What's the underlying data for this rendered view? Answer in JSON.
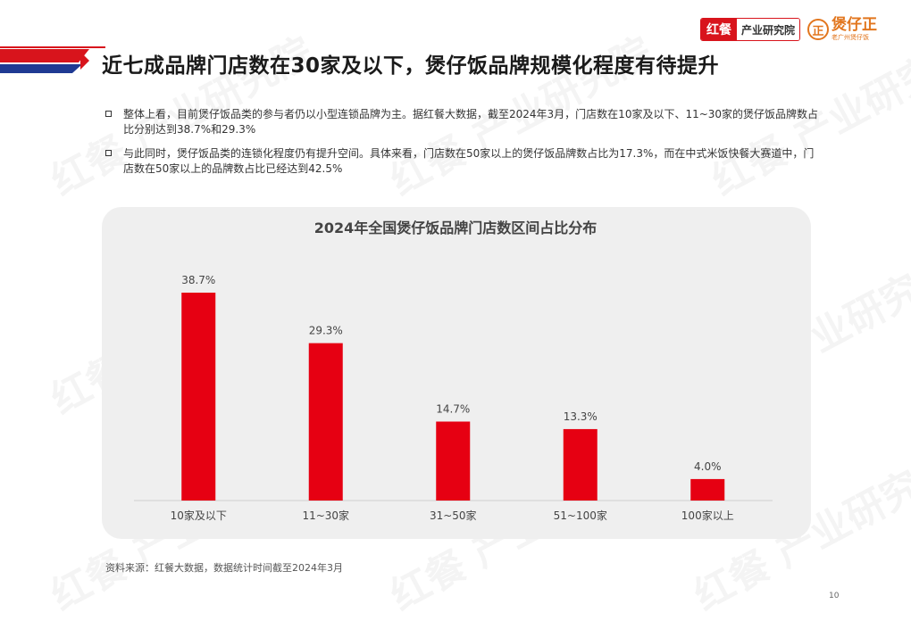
{
  "header": {
    "logo_hong_red": "红餐",
    "logo_hong_white": "产业研究院",
    "logo_bao_seal": "正",
    "logo_bao_main": "煲仔正",
    "logo_bao_sub": "老广州煲仔饭"
  },
  "page_title": "近七成品牌门店数在30家及以下，煲仔饭品牌规模化程度有待提升",
  "bullets": [
    "整体上看，目前煲仔饭品类的参与者仍以小型连锁品牌为主。据红餐大数据，截至2024年3月，门店数在10家及以下、11~30家的煲仔饭品牌数占比分别达到38.7%和29.3%",
    "与此同时，煲仔饭品类的连锁化程度仍有提升空间。具体来看，门店数在50家以上的煲仔饭品牌数占比为17.3%，而在中式米饭快餐大赛道中，门店数在50家以上的品牌数占比已经达到42.5%"
  ],
  "chart_data": {
    "type": "bar",
    "title": "2024年全国煲仔饭品牌门店数区间占比分布",
    "categories": [
      "10家及以下",
      "11~30家",
      "31~50家",
      "51~100家",
      "100家以上"
    ],
    "values": [
      38.7,
      29.3,
      14.7,
      13.3,
      4.0
    ],
    "value_labels": [
      "38.7%",
      "29.3%",
      "14.7%",
      "13.3%",
      "4.0%"
    ],
    "unit": "%",
    "bar_color": "#e60012",
    "ylim": [
      0,
      40
    ],
    "grid": false,
    "legend": "none"
  },
  "watermark_text": "红餐 产业研究院",
  "source": "资料来源：红餐大数据，数据统计时间截至2024年3月",
  "page_number": "10"
}
